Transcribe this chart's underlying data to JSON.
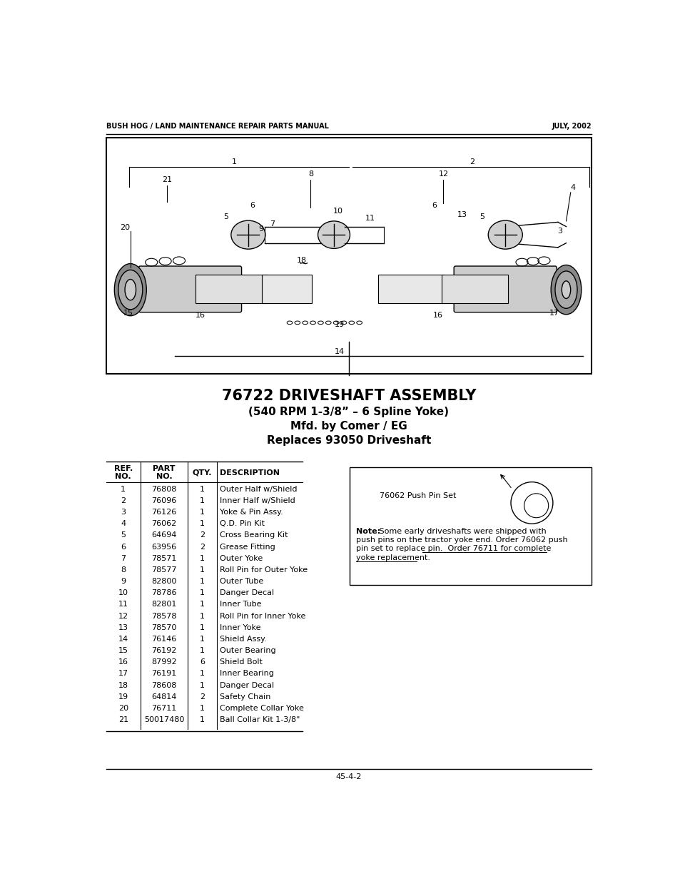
{
  "header_left": "BUSH HOG / LAND MAINTENANCE REPAIR PARTS MANUAL",
  "header_right": "JULY, 2002",
  "footer_center": "45-4-2",
  "title_line1": "76722 DRIVESHAFT ASSEMBLY",
  "title_line2": "(540 RPM 1-3/8” – 6 Spline Yoke)",
  "title_line3": "Mfd. by Comer / EG",
  "title_line4": "Replaces 93050 Driveshaft",
  "parts": [
    [
      1,
      "76808",
      1,
      "Outer Half w/Shield"
    ],
    [
      2,
      "76096",
      1,
      "Inner Half w/Shield"
    ],
    [
      3,
      "76126",
      1,
      "Yoke & Pin Assy."
    ],
    [
      4,
      "76062",
      1,
      "Q.D. Pin Kit"
    ],
    [
      5,
      "64694",
      2,
      "Cross Bearing Kit"
    ],
    [
      6,
      "63956",
      2,
      "Grease Fitting"
    ],
    [
      7,
      "78571",
      1,
      "Outer Yoke"
    ],
    [
      8,
      "78577",
      1,
      "Roll Pin for Outer Yoke"
    ],
    [
      9,
      "82800",
      1,
      "Outer Tube"
    ],
    [
      10,
      "78786",
      1,
      "Danger Decal"
    ],
    [
      11,
      "82801",
      1,
      "Inner Tube"
    ],
    [
      12,
      "78578",
      1,
      "Roll Pin for Inner Yoke"
    ],
    [
      13,
      "78570",
      1,
      "Inner Yoke"
    ],
    [
      14,
      "76146",
      1,
      "Shield Assy."
    ],
    [
      15,
      "76192",
      1,
      "Outer Bearing"
    ],
    [
      16,
      "87992",
      6,
      "Shield Bolt"
    ],
    [
      17,
      "76191",
      1,
      "Inner Bearing"
    ],
    [
      18,
      "78608",
      1,
      "Danger Decal"
    ],
    [
      19,
      "64814",
      2,
      "Safety Chain"
    ],
    [
      20,
      "76711",
      1,
      "Complete Collar Yoke"
    ],
    [
      21,
      "50017480",
      1,
      "Ball Collar Kit 1-3/8\""
    ]
  ],
  "push_pin_label": "76062 Push Pin Set",
  "note_bold": "Note:",
  "note_rest1": " Some early driveshafts were shipped with",
  "note_line2": "push pins on the tractor yoke end. Order 76062 push",
  "note_line3": "pin set to replace pin.  ",
  "note_underline1": "Order 76711 for complete",
  "note_line4": "yoke replacement.",
  "bg_color": "#ffffff",
  "text_color": "#000000"
}
